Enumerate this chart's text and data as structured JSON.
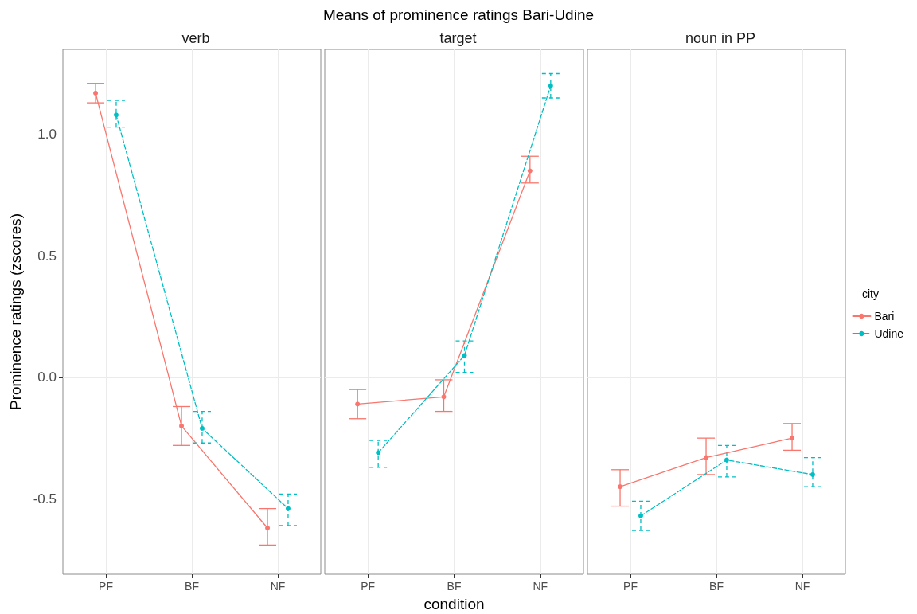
{
  "chart_data": [
    {
      "type": "line",
      "title": "verb",
      "ylabel": "Prominence ratings (zscores)",
      "annotations": [
        "Means of prominence ratings Bari-Udine"
      ],
      "categories": [
        "PF",
        "BF",
        "NF"
      ],
      "ylim": [
        -0.81,
        1.35
      ],
      "yticks": [
        {
          "value": -0.5,
          "label": "-0.5"
        },
        {
          "value": 0,
          "label": "0.0"
        },
        {
          "value": 0.5,
          "label": "0.5"
        },
        {
          "value": 1,
          "label": "1.0"
        }
      ],
      "grid": true,
      "marker": "circle",
      "legend": false,
      "series": [
        {
          "color": "#f8766d",
          "line_style": "solid",
          "values": [
            1.17,
            -0.2,
            -0.62
          ],
          "errors": [
            [
              1.13,
              1.21
            ],
            [
              -0.28,
              -0.12
            ],
            [
              -0.69,
              -0.54
            ]
          ]
        },
        {
          "color": "#00bfc4",
          "line_style": "dashed",
          "values": [
            1.08,
            -0.21,
            -0.54
          ],
          "errors": [
            [
              1.03,
              1.14
            ],
            [
              -0.27,
              -0.14
            ],
            [
              -0.61,
              -0.48
            ]
          ]
        }
      ]
    },
    {
      "type": "line",
      "title": "target",
      "xlabel": "condition",
      "categories": [
        "PF",
        "BF",
        "NF"
      ],
      "ylim": [
        -0.81,
        1.35
      ],
      "yticks": [
        -0.5,
        0,
        0.5,
        1
      ],
      "tick_labels": "x",
      "grid": true,
      "marker": "circle",
      "legend": false,
      "series": [
        {
          "color": "#f8766d",
          "line_style": "solid",
          "values": [
            -0.11,
            -0.08,
            0.85
          ],
          "errors": [
            [
              -0.17,
              -0.05
            ],
            [
              -0.14,
              -0.01
            ],
            [
              0.8,
              0.91
            ]
          ]
        },
        {
          "color": "#00bfc4",
          "line_style": "dashed",
          "values": [
            -0.31,
            0.09,
            1.2
          ],
          "errors": [
            [
              -0.37,
              -0.26
            ],
            [
              0.02,
              0.15
            ],
            [
              1.15,
              1.25
            ]
          ]
        }
      ]
    },
    {
      "type": "line",
      "title": "noun in PP",
      "legend_title": "city",
      "categories": [
        "PF",
        "BF",
        "NF"
      ],
      "ylim": [
        -0.81,
        1.35
      ],
      "yticks": [
        -0.5,
        0,
        0.5,
        1
      ],
      "tick_labels": "x",
      "grid": true,
      "marker": "circle",
      "legend": "right",
      "series": [
        {
          "name": "Bari",
          "color": "#f8766d",
          "line_style": "solid",
          "values": [
            -0.45,
            -0.33,
            -0.25
          ],
          "errors": [
            [
              -0.53,
              -0.38
            ],
            [
              -0.4,
              -0.25
            ],
            [
              -0.3,
              -0.19
            ]
          ]
        },
        {
          "name": "Udine",
          "color": "#00bfc4",
          "line_style": "dashed",
          "values": [
            -0.57,
            -0.34,
            -0.4
          ],
          "errors": [
            [
              -0.63,
              -0.51
            ],
            [
              -0.41,
              -0.28
            ],
            [
              -0.45,
              -0.33
            ]
          ]
        }
      ]
    }
  ]
}
